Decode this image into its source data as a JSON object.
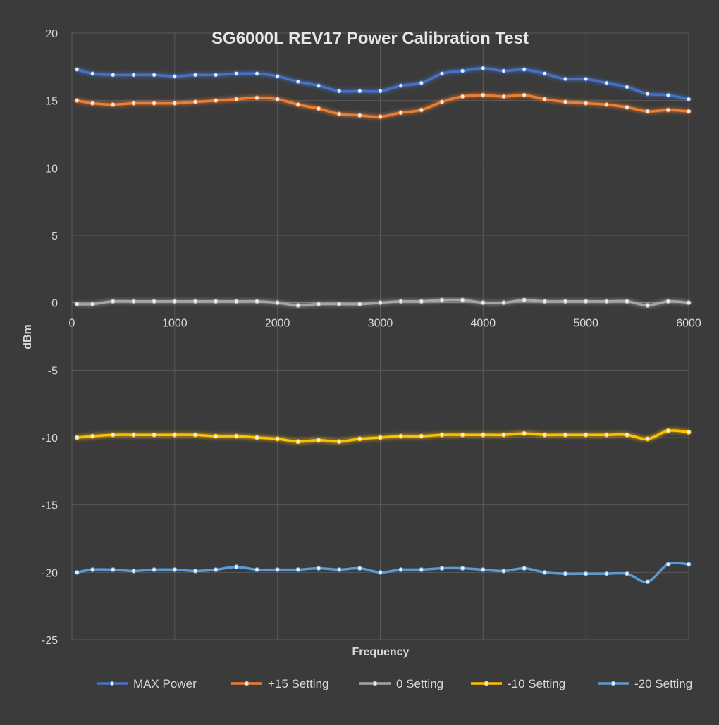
{
  "chart_data": {
    "type": "line",
    "title": "SG6000L REV17 Power Calibration Test",
    "xlabel": "Frequency",
    "ylabel": "dBm",
    "xlim": [
      0,
      6000
    ],
    "ylim": [
      -25,
      20
    ],
    "xticks": [
      0,
      1000,
      2000,
      3000,
      4000,
      5000,
      6000
    ],
    "yticks": [
      20,
      15,
      10,
      5,
      0,
      -5,
      -10,
      -15,
      -20,
      -25
    ],
    "grid": true,
    "legend": "bottom",
    "x": [
      50,
      200,
      400,
      600,
      800,
      1000,
      1200,
      1400,
      1600,
      1800,
      2000,
      2200,
      2400,
      2600,
      2800,
      3000,
      3200,
      3400,
      3600,
      3800,
      4000,
      4200,
      4400,
      4600,
      4800,
      5000,
      5200,
      5400,
      5600,
      5800,
      6000
    ],
    "series": [
      {
        "name": "MAX Power",
        "color": "#4472c4",
        "values": [
          17.3,
          17.0,
          16.9,
          16.9,
          16.9,
          16.8,
          16.9,
          16.9,
          17.0,
          17.0,
          16.8,
          16.4,
          16.1,
          15.7,
          15.7,
          15.7,
          16.1,
          16.3,
          17.0,
          17.2,
          17.4,
          17.2,
          17.3,
          17.0,
          16.6,
          16.6,
          16.3,
          16.0,
          15.5,
          15.4,
          15.1
        ]
      },
      {
        "name": "+15 Setting",
        "color": "#ed7d31",
        "values": [
          15.0,
          14.8,
          14.7,
          14.8,
          14.8,
          14.8,
          14.9,
          15.0,
          15.1,
          15.2,
          15.1,
          14.7,
          14.4,
          14.0,
          13.9,
          13.8,
          14.1,
          14.3,
          14.9,
          15.3,
          15.4,
          15.3,
          15.4,
          15.1,
          14.9,
          14.8,
          14.7,
          14.5,
          14.2,
          14.3,
          14.2
        ]
      },
      {
        "name": "0 Setting",
        "color": "#a5a5a5",
        "values": [
          -0.1,
          -0.1,
          0.1,
          0.1,
          0.1,
          0.1,
          0.1,
          0.1,
          0.1,
          0.1,
          0.0,
          -0.2,
          -0.1,
          -0.1,
          -0.1,
          0.0,
          0.1,
          0.1,
          0.2,
          0.2,
          0.0,
          0.0,
          0.2,
          0.1,
          0.1,
          0.1,
          0.1,
          0.1,
          -0.2,
          0.1,
          0.0
        ]
      },
      {
        "name": "-10 Setting",
        "color": "#ffc000",
        "values": [
          -10.0,
          -9.9,
          -9.8,
          -9.8,
          -9.8,
          -9.8,
          -9.8,
          -9.9,
          -9.9,
          -10.0,
          -10.1,
          -10.3,
          -10.2,
          -10.3,
          -10.1,
          -10.0,
          -9.9,
          -9.9,
          -9.8,
          -9.8,
          -9.8,
          -9.8,
          -9.7,
          -9.8,
          -9.8,
          -9.8,
          -9.8,
          -9.8,
          -10.1,
          -9.5,
          -9.6
        ]
      },
      {
        "name": "-20 Setting",
        "color": "#5b9bd5",
        "values": [
          -20.0,
          -19.8,
          -19.8,
          -19.9,
          -19.8,
          -19.8,
          -19.9,
          -19.8,
          -19.6,
          -19.8,
          -19.8,
          -19.8,
          -19.7,
          -19.8,
          -19.7,
          -20.0,
          -19.8,
          -19.8,
          -19.7,
          -19.7,
          -19.8,
          -19.9,
          -19.7,
          -20.0,
          -20.1,
          -20.1,
          -20.1,
          -20.1,
          -20.7,
          -19.4,
          -19.4
        ]
      }
    ]
  }
}
